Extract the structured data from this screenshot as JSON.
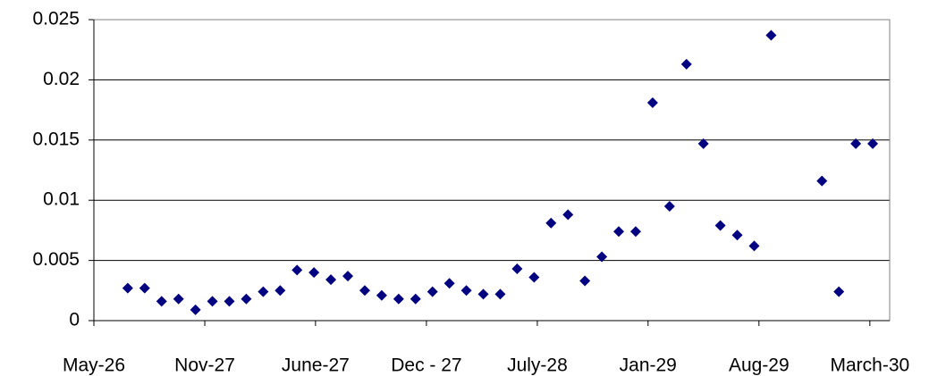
{
  "chart_data": {
    "type": "scatter",
    "x": [
      2,
      3,
      4,
      5,
      6,
      7,
      8,
      9,
      10,
      11,
      12,
      13,
      14,
      15,
      16,
      17,
      18,
      19,
      20,
      21,
      22,
      23,
      24,
      25,
      26,
      27,
      28,
      29,
      30,
      31,
      32,
      33,
      34,
      35,
      36,
      37,
      38,
      39,
      40,
      43,
      44,
      45,
      46
    ],
    "values": [
      0.0027,
      0.0027,
      0.0016,
      0.0018,
      0.0009,
      0.0016,
      0.0016,
      0.0018,
      0.0024,
      0.0025,
      0.0042,
      0.004,
      0.0034,
      0.0037,
      0.0025,
      0.0021,
      0.0018,
      0.0018,
      0.0024,
      0.0031,
      0.0025,
      0.0022,
      0.0022,
      0.0043,
      0.0036,
      0.0081,
      0.0088,
      0.0033,
      0.0053,
      0.0074,
      0.0074,
      0.0181,
      0.0095,
      0.0213,
      0.0147,
      0.0079,
      0.0071,
      0.0062,
      0.0237,
      0.0116,
      0.0024,
      0.0147,
      0.0147
    ],
    "color": "#000080",
    "xlim": [
      0,
      47
    ],
    "xticks": [
      {
        "value": 0,
        "label": "May-26"
      },
      {
        "value": 6.55,
        "label": "Nov-27"
      },
      {
        "value": 13.09,
        "label": "June-27"
      },
      {
        "value": 19.64,
        "label": "Dec - 27"
      },
      {
        "value": 26.19,
        "label": "July-28"
      },
      {
        "value": 32.73,
        "label": "Jan-29"
      },
      {
        "value": 39.28,
        "label": "Aug-29"
      },
      {
        "value": 45.83,
        "label": "March-30"
      }
    ],
    "ylim": [
      0,
      0.025
    ],
    "yticks": [
      0,
      0.005,
      0.01,
      0.015,
      0.02,
      0.025
    ],
    "grid": true
  }
}
